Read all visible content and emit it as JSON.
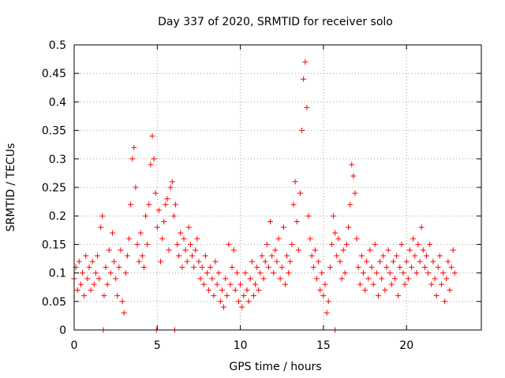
{
  "chart_data": {
    "type": "scatter",
    "title": "Day 337 of 2020, SRMTID for receiver solo",
    "xlabel": "GPS time / hours",
    "ylabel": "SRMTID / TECUs",
    "xlim": [
      0,
      24.5
    ],
    "ylim": [
      0,
      0.5
    ],
    "x_ticks": [
      0,
      5,
      10,
      15,
      20
    ],
    "x_tick_labels": [
      "0",
      "5",
      "10",
      "15",
      "20"
    ],
    "y_ticks": [
      0,
      0.05,
      0.1,
      0.15,
      0.2,
      0.25,
      0.3,
      0.35,
      0.4,
      0.45,
      0.5
    ],
    "y_tick_labels": [
      "0",
      "0.05",
      "0.1",
      "0.15",
      "0.2",
      "0.25",
      "0.3",
      "0.35",
      "0.4",
      "0.45",
      "0.5"
    ],
    "grid": true,
    "marker": "plus",
    "color": "#ff0000",
    "series": [
      {
        "name": "SRMTID",
        "points": [
          [
            0.0,
            0.09
          ],
          [
            0.1,
            0.11
          ],
          [
            0.2,
            0.07
          ],
          [
            0.3,
            0.12
          ],
          [
            0.4,
            0.08
          ],
          [
            0.5,
            0.1
          ],
          [
            0.6,
            0.06
          ],
          [
            0.7,
            0.13
          ],
          [
            0.8,
            0.09
          ],
          [
            0.9,
            0.11
          ],
          [
            1.0,
            0.07
          ],
          [
            1.1,
            0.12
          ],
          [
            1.2,
            0.08
          ],
          [
            1.3,
            0.1
          ],
          [
            1.4,
            0.13
          ],
          [
            1.5,
            0.09
          ],
          [
            1.6,
            0.18
          ],
          [
            1.7,
            0.2
          ],
          [
            1.8,
            0.06
          ],
          [
            1.9,
            0.11
          ],
          [
            2.0,
            0.08
          ],
          [
            2.1,
            0.14
          ],
          [
            2.2,
            0.1
          ],
          [
            2.3,
            0.17
          ],
          [
            2.4,
            0.12
          ],
          [
            2.5,
            0.09
          ],
          [
            2.6,
            0.06
          ],
          [
            2.7,
            0.11
          ],
          [
            2.8,
            0.14
          ],
          [
            2.9,
            0.05
          ],
          [
            3.0,
            0.03
          ],
          [
            3.1,
            0.1
          ],
          [
            3.2,
            0.13
          ],
          [
            3.3,
            0.16
          ],
          [
            3.4,
            0.22
          ],
          [
            3.5,
            0.3
          ],
          [
            3.6,
            0.32
          ],
          [
            3.7,
            0.25
          ],
          [
            3.8,
            0.15
          ],
          [
            3.9,
            0.12
          ],
          [
            4.0,
            0.17
          ],
          [
            4.1,
            0.13
          ],
          [
            4.2,
            0.11
          ],
          [
            4.3,
            0.2
          ],
          [
            4.4,
            0.15
          ],
          [
            4.5,
            0.22
          ],
          [
            4.6,
            0.29
          ],
          [
            4.7,
            0.34
          ],
          [
            4.8,
            0.3
          ],
          [
            4.9,
            0.24
          ],
          [
            5.0,
            0.18
          ],
          [
            5.1,
            0.21
          ],
          [
            5.2,
            0.12
          ],
          [
            5.3,
            0.16
          ],
          [
            5.4,
            0.19
          ],
          [
            5.5,
            0.22
          ],
          [
            5.6,
            0.23
          ],
          [
            5.7,
            0.14
          ],
          [
            5.8,
            0.25
          ],
          [
            5.9,
            0.26
          ],
          [
            6.0,
            0.2
          ],
          [
            6.1,
            0.22
          ],
          [
            6.2,
            0.15
          ],
          [
            6.3,
            0.13
          ],
          [
            6.4,
            0.17
          ],
          [
            6.5,
            0.11
          ],
          [
            6.6,
            0.16
          ],
          [
            6.7,
            0.14
          ],
          [
            6.8,
            0.12
          ],
          [
            6.9,
            0.18
          ],
          [
            7.0,
            0.15
          ],
          [
            7.1,
            0.13
          ],
          [
            7.2,
            0.11
          ],
          [
            7.3,
            0.14
          ],
          [
            7.4,
            0.16
          ],
          [
            7.5,
            0.12
          ],
          [
            7.6,
            0.09
          ],
          [
            7.7,
            0.11
          ],
          [
            7.8,
            0.08
          ],
          [
            7.9,
            0.13
          ],
          [
            8.0,
            0.1
          ],
          [
            8.1,
            0.07
          ],
          [
            8.2,
            0.11
          ],
          [
            8.3,
            0.09
          ],
          [
            8.4,
            0.06
          ],
          [
            8.5,
            0.12
          ],
          [
            8.6,
            0.08
          ],
          [
            8.7,
            0.1
          ],
          [
            8.8,
            0.05
          ],
          [
            8.9,
            0.07
          ],
          [
            9.0,
            0.04
          ],
          [
            9.1,
            0.09
          ],
          [
            9.2,
            0.06
          ],
          [
            9.3,
            0.15
          ],
          [
            9.4,
            0.08
          ],
          [
            9.5,
            0.11
          ],
          [
            9.6,
            0.14
          ],
          [
            9.7,
            0.07
          ],
          [
            9.8,
            0.1
          ],
          [
            9.9,
            0.05
          ],
          [
            10.0,
            0.08
          ],
          [
            10.1,
            0.04
          ],
          [
            10.2,
            0.06
          ],
          [
            10.3,
            0.1
          ],
          [
            10.4,
            0.07
          ],
          [
            10.5,
            0.05
          ],
          [
            10.6,
            0.09
          ],
          [
            10.7,
            0.12
          ],
          [
            10.8,
            0.06
          ],
          [
            10.9,
            0.08
          ],
          [
            11.0,
            0.11
          ],
          [
            11.1,
            0.07
          ],
          [
            11.2,
            0.1
          ],
          [
            11.3,
            0.13
          ],
          [
            11.4,
            0.09
          ],
          [
            11.5,
            0.12
          ],
          [
            11.6,
            0.15
          ],
          [
            11.7,
            0.11
          ],
          [
            11.8,
            0.19
          ],
          [
            11.9,
            0.13
          ],
          [
            12.0,
            0.1
          ],
          [
            12.1,
            0.14
          ],
          [
            12.2,
            0.12
          ],
          [
            12.3,
            0.16
          ],
          [
            12.4,
            0.09
          ],
          [
            12.5,
            0.11
          ],
          [
            12.6,
            0.18
          ],
          [
            12.7,
            0.08
          ],
          [
            12.8,
            0.13
          ],
          [
            12.9,
            0.1
          ],
          [
            13.0,
            0.12
          ],
          [
            13.1,
            0.15
          ],
          [
            13.2,
            0.22
          ],
          [
            13.3,
            0.26
          ],
          [
            13.4,
            0.19
          ],
          [
            13.5,
            0.14
          ],
          [
            13.6,
            0.24
          ],
          [
            13.7,
            0.35
          ],
          [
            13.8,
            0.44
          ],
          [
            13.9,
            0.47
          ],
          [
            14.0,
            0.39
          ],
          [
            14.1,
            0.2
          ],
          [
            14.2,
            0.16
          ],
          [
            14.3,
            0.13
          ],
          [
            14.4,
            0.11
          ],
          [
            14.5,
            0.14
          ],
          [
            14.6,
            0.09
          ],
          [
            14.7,
            0.12
          ],
          [
            14.8,
            0.07
          ],
          [
            14.9,
            0.1
          ],
          [
            15.0,
            0.06
          ],
          [
            15.1,
            0.08
          ],
          [
            15.2,
            0.03
          ],
          [
            15.3,
            0.05
          ],
          [
            15.4,
            0.11
          ],
          [
            15.5,
            0.15
          ],
          [
            15.6,
            0.2
          ],
          [
            15.7,
            0.17
          ],
          [
            15.8,
            0.13
          ],
          [
            15.9,
            0.16
          ],
          [
            16.0,
            0.12
          ],
          [
            16.1,
            0.09
          ],
          [
            16.2,
            0.14
          ],
          [
            16.3,
            0.1
          ],
          [
            16.4,
            0.15
          ],
          [
            16.5,
            0.18
          ],
          [
            16.6,
            0.22
          ],
          [
            16.7,
            0.29
          ],
          [
            16.8,
            0.27
          ],
          [
            16.9,
            0.24
          ],
          [
            17.0,
            0.16
          ],
          [
            17.1,
            0.11
          ],
          [
            17.2,
            0.08
          ],
          [
            17.3,
            0.13
          ],
          [
            17.4,
            0.1
          ],
          [
            17.5,
            0.07
          ],
          [
            17.6,
            0.12
          ],
          [
            17.7,
            0.09
          ],
          [
            17.8,
            0.14
          ],
          [
            17.9,
            0.11
          ],
          [
            18.0,
            0.08
          ],
          [
            18.1,
            0.15
          ],
          [
            18.2,
            0.1
          ],
          [
            18.3,
            0.06
          ],
          [
            18.4,
            0.12
          ],
          [
            18.5,
            0.09
          ],
          [
            18.6,
            0.13
          ],
          [
            18.7,
            0.07
          ],
          [
            18.8,
            0.11
          ],
          [
            18.9,
            0.14
          ],
          [
            19.0,
            0.1
          ],
          [
            19.1,
            0.08
          ],
          [
            19.2,
            0.12
          ],
          [
            19.3,
            0.09
          ],
          [
            19.4,
            0.13
          ],
          [
            19.5,
            0.06
          ],
          [
            19.6,
            0.11
          ],
          [
            19.7,
            0.15
          ],
          [
            19.8,
            0.1
          ],
          [
            19.9,
            0.08
          ],
          [
            20.0,
            0.12
          ],
          [
            20.1,
            0.09
          ],
          [
            20.2,
            0.14
          ],
          [
            20.3,
            0.11
          ],
          [
            20.4,
            0.16
          ],
          [
            20.5,
            0.13
          ],
          [
            20.6,
            0.1
          ],
          [
            20.7,
            0.15
          ],
          [
            20.8,
            0.12
          ],
          [
            20.9,
            0.18
          ],
          [
            21.0,
            0.14
          ],
          [
            21.1,
            0.11
          ],
          [
            21.2,
            0.13
          ],
          [
            21.3,
            0.1
          ],
          [
            21.4,
            0.15
          ],
          [
            21.5,
            0.08
          ],
          [
            21.6,
            0.12
          ],
          [
            21.7,
            0.09
          ],
          [
            21.8,
            0.06
          ],
          [
            21.9,
            0.11
          ],
          [
            22.0,
            0.13
          ],
          [
            22.1,
            0.08
          ],
          [
            22.2,
            0.1
          ],
          [
            22.3,
            0.05
          ],
          [
            22.4,
            0.09
          ],
          [
            22.5,
            0.12
          ],
          [
            22.6,
            0.07
          ],
          [
            22.7,
            0.11
          ],
          [
            22.8,
            0.14
          ],
          [
            22.9,
            0.1
          ],
          [
            1.75,
            0
          ],
          [
            4.95,
            0
          ],
          [
            6.05,
            0
          ],
          [
            15.7,
            0
          ]
        ]
      }
    ]
  }
}
